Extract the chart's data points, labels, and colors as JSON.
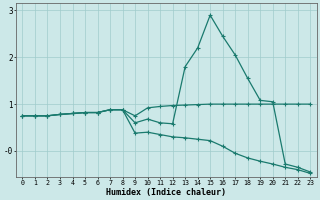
{
  "xlabel": "Humidex (Indice chaleur)",
  "background_color": "#cce8e8",
  "grid_color": "#a0cccc",
  "line_color": "#1a7a6e",
  "xlim": [
    -0.5,
    23.5
  ],
  "ylim": [
    -0.55,
    3.15
  ],
  "series1_x": [
    0,
    1,
    2,
    3,
    4,
    5,
    6,
    7,
    8,
    9,
    10,
    11,
    12,
    13,
    14,
    15,
    16,
    17,
    18,
    19,
    20,
    21,
    22,
    23
  ],
  "series1_y": [
    0.75,
    0.75,
    0.75,
    0.78,
    0.8,
    0.82,
    0.82,
    0.88,
    0.88,
    0.75,
    0.92,
    0.95,
    0.97,
    0.98,
    0.99,
    1.0,
    1.0,
    1.0,
    1.0,
    1.0,
    1.0,
    1.0,
    1.0,
    1.0
  ],
  "series2_x": [
    0,
    1,
    2,
    3,
    4,
    5,
    6,
    7,
    8,
    9,
    10,
    11,
    12,
    13,
    14,
    15,
    16,
    17,
    18,
    19,
    20,
    21,
    22,
    23
  ],
  "series2_y": [
    0.75,
    0.75,
    0.75,
    0.78,
    0.8,
    0.82,
    0.82,
    0.88,
    0.88,
    0.6,
    0.68,
    0.6,
    0.58,
    1.8,
    2.2,
    2.9,
    2.45,
    2.05,
    1.55,
    1.08,
    1.05,
    -0.28,
    -0.35,
    -0.45
  ],
  "series3_x": [
    0,
    1,
    2,
    3,
    4,
    5,
    6,
    7,
    8,
    9,
    10,
    11,
    12,
    13,
    14,
    15,
    16,
    17,
    18,
    19,
    20,
    21,
    22,
    23
  ],
  "series3_y": [
    0.75,
    0.75,
    0.75,
    0.78,
    0.8,
    0.82,
    0.82,
    0.88,
    0.88,
    0.38,
    0.4,
    0.35,
    0.3,
    0.28,
    0.25,
    0.22,
    0.1,
    -0.05,
    -0.15,
    -0.22,
    -0.28,
    -0.35,
    -0.4,
    -0.48
  ]
}
